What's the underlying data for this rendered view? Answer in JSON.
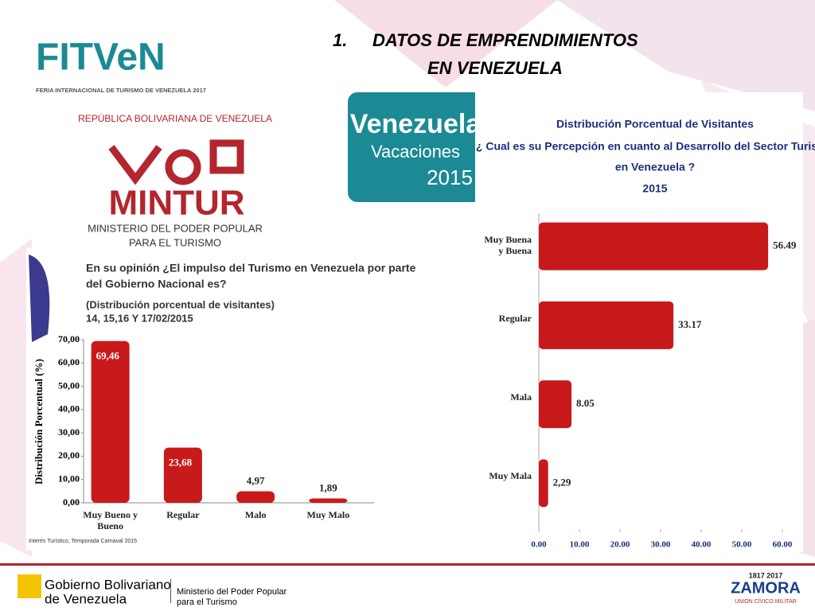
{
  "slide": {
    "number": "1.",
    "title_line1": "DATOS DE EMPRENDIMIENTOS",
    "title_line2": "EN VENEZUELA"
  },
  "logos": {
    "fitven": "FITVeN",
    "fitven_sub": "FERIA INTERNACIONAL DE TURISMO DE VENEZUELA 2017",
    "republica": "REPÚBLICA BOLIVARIANA DE VENEZUELA",
    "mintur": "MINTUR",
    "ministerio_line1": "MINISTERIO DEL PODER POPULAR",
    "ministerio_line2": "PARA EL TURISMO",
    "venezuela": "Venezuela",
    "vacaciones": "Vacaciones",
    "year": "2015"
  },
  "footer": {
    "gobierno_line1": "Gobierno Bolivariano",
    "gobierno_line2": "de Venezuela",
    "ministerio_line1": "Ministerio del Poder Popular",
    "ministerio_line2": "para el Turismo",
    "zamora_years": "1817 2017",
    "zamora": "ZAMORA",
    "zamora_sub": "UNIÓN CÍVICO MILITAR"
  },
  "chart_data": [
    {
      "type": "bar",
      "title_line1": "En su opinión ¿El impulso del Turismo en Venezuela por parte",
      "title_line2": "del Gobierno Nacional es?",
      "subtitle_line1": "(Distribución porcentual de visitantes)",
      "subtitle_line2": "14, 15,16 Y 17/02/2015",
      "y_label": "Distribución Porcentual (%)",
      "source": "Interés Turístico, Temporada Carnaval 2015",
      "categories": [
        "Muy Bueno y Bueno",
        "Regular",
        "Malo",
        "Muy Malo"
      ],
      "values": [
        69.46,
        23.68,
        4.97,
        1.89
      ],
      "value_labels": [
        "69,46",
        "23,68",
        "4,97",
        "1,89"
      ],
      "color": "#c8191b",
      "ylim": [
        0,
        70
      ],
      "yticks": [
        {
          "value": 0,
          "label": "0,00"
        },
        {
          "value": 10,
          "label": "10,00"
        },
        {
          "value": 20,
          "label": "20,00"
        },
        {
          "value": 30,
          "label": "30,00"
        },
        {
          "value": 40,
          "label": "40,00"
        },
        {
          "value": 50,
          "label": "50,00"
        },
        {
          "value": 60,
          "label": "60,00"
        },
        {
          "value": 70,
          "label": "70,00"
        }
      ]
    },
    {
      "type": "hbar",
      "title_line1": "Distribución Porcentual de Visitantes",
      "title_line2": "¿ Cual es su Percepción en cuanto al Desarrollo del Sector Turismo",
      "title_line3": "en Venezuela ?",
      "title_line4": "2015",
      "categories": [
        "Muy Buena y Buena",
        "Regular",
        "Mala",
        "Muy Mala"
      ],
      "values": [
        56.49,
        33.17,
        8.05,
        2.29
      ],
      "value_labels": [
        "56.49",
        "33.17",
        "8.05",
        "2,29"
      ],
      "color": "#c8191b",
      "xlim": [
        0,
        60
      ],
      "xticks": [
        {
          "value": 0,
          "label": "0.00"
        },
        {
          "value": 10,
          "label": "10.00"
        },
        {
          "value": 20,
          "label": "20.00"
        },
        {
          "value": 30,
          "label": "30.00"
        },
        {
          "value": 40,
          "label": "40.00"
        },
        {
          "value": 50,
          "label": "50.00"
        },
        {
          "value": 60,
          "label": "60.00"
        }
      ]
    }
  ]
}
